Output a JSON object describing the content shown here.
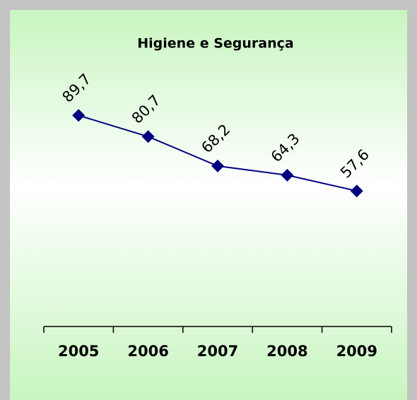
{
  "chart_data": {
    "type": "line",
    "title": "Higiene e Segurança",
    "categories": [
      "2005",
      "2006",
      "2007",
      "2008",
      "2009"
    ],
    "series": [
      {
        "name": "Higiene e Segurança",
        "color": "#000080",
        "values": [
          89.7,
          80.7,
          68.2,
          64.3,
          57.6
        ],
        "value_labels": [
          "89,7",
          "80,7",
          "68,2",
          "64,3",
          "57,6"
        ]
      }
    ],
    "ylim": [
      0,
      100
    ]
  }
}
